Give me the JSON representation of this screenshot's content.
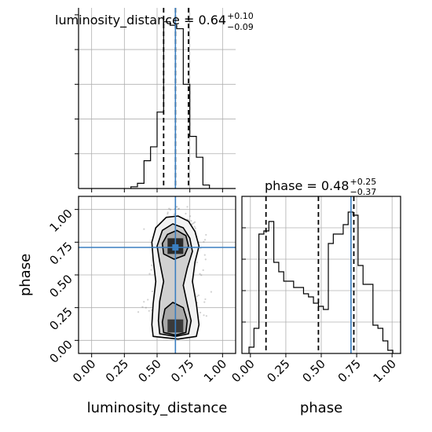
{
  "chart_data": {
    "type": "corner",
    "parameters": [
      "luminosity_distance",
      "phase"
    ],
    "truth": {
      "luminosity_distance": 0.64,
      "phase": 0.71
    },
    "luminosity_distance": {
      "title": {
        "name": "luminosity_distance",
        "median": "0.64",
        "plus": "+0.10",
        "minus": "−0.09"
      },
      "xlabel": "luminosity_distance",
      "xlim": [
        -0.1,
        1.1
      ],
      "ticks": [
        0.0,
        0.25,
        0.5,
        0.75,
        1.0
      ],
      "tick_labels": [
        "0.00",
        "0.25",
        "0.50",
        "0.75",
        "1.00"
      ],
      "hist_edges": [
        0.3,
        0.35,
        0.4,
        0.45,
        0.5,
        0.55,
        0.6,
        0.65,
        0.7,
        0.75,
        0.8,
        0.85,
        0.9
      ],
      "hist_counts": [
        0.5,
        1.5,
        8,
        12,
        22,
        48,
        47,
        46,
        30,
        15,
        9,
        1
      ],
      "quantiles": [
        0.55,
        0.64,
        0.74
      ]
    },
    "phase": {
      "title": {
        "name": "phase",
        "median": "0.48",
        "plus": "+0.25",
        "minus": "−0.37"
      },
      "xlabel": "phase",
      "ylabel": "phase",
      "xlim": [
        -0.06,
        1.06
      ],
      "ticks": [
        0.0,
        0.25,
        0.5,
        0.75,
        1.0
      ],
      "tick_labels": [
        "0.00",
        "0.25",
        "0.50",
        "0.75",
        "1.00"
      ],
      "hist_edges": [
        -0.01,
        0.025,
        0.06,
        0.095,
        0.13,
        0.165,
        0.2,
        0.235,
        0.27,
        0.305,
        0.34,
        0.375,
        0.41,
        0.445,
        0.48,
        0.515,
        0.55,
        0.585,
        0.62,
        0.655,
        0.69,
        0.725,
        0.76,
        0.795,
        0.83,
        0.865,
        0.9,
        0.935,
        0.97,
        1.005
      ],
      "hist_counts": [
        2,
        8,
        38,
        39,
        42,
        29,
        26,
        23,
        23,
        21,
        21,
        19,
        18,
        16,
        15,
        14,
        35,
        38,
        38,
        41,
        45,
        44,
        28,
        22,
        22,
        9,
        8,
        4,
        1
      ],
      "quantiles": [
        0.11,
        0.48,
        0.73
      ]
    },
    "scatter_ylim": [
      -0.1,
      1.1
    ]
  }
}
